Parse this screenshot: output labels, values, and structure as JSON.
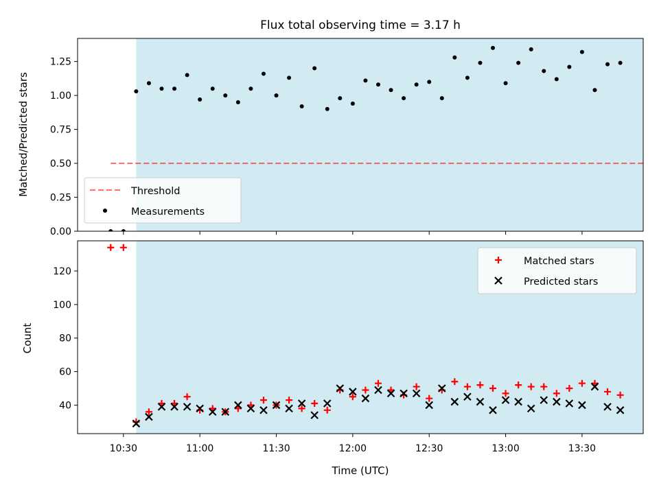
{
  "chart_data": [
    {
      "type": "scatter",
      "title": "Flux total observing time = 3.17 h",
      "ylabel": "Matched/Predicted stars",
      "xlabel": "",
      "ylim": [
        0,
        1.42
      ],
      "xlim": [
        "10:12",
        "13:54"
      ],
      "yticks": [
        "0.00",
        "0.25",
        "0.50",
        "0.75",
        "1.00",
        "1.25"
      ],
      "shaded_span": [
        "10:35",
        "14:10"
      ],
      "shade_color": "#add8e6",
      "threshold": {
        "name": "Threshold",
        "y": 0.5,
        "x_start": "10:25",
        "x_end": "14:10",
        "color": "#ff0000"
      },
      "legend_position": "lower-left",
      "series": [
        {
          "name": "Measurements",
          "marker": "dot",
          "color": "#000000",
          "x": [
            "10:25",
            "10:30",
            "10:35",
            "10:40",
            "10:45",
            "10:50",
            "10:55",
            "11:00",
            "11:05",
            "11:10",
            "11:15",
            "11:20",
            "11:25",
            "11:30",
            "11:35",
            "11:40",
            "11:45",
            "11:50",
            "11:55",
            "12:00",
            "12:05",
            "12:10",
            "12:15",
            "12:20",
            "12:25",
            "12:30",
            "12:35",
            "12:40",
            "12:45",
            "12:50",
            "12:55",
            "13:00",
            "13:05",
            "13:10",
            "13:15",
            "13:20",
            "13:25",
            "13:30",
            "13:35",
            "13:40",
            "13:45"
          ],
          "y": [
            0.0,
            0.0,
            1.03,
            1.09,
            1.05,
            1.05,
            1.15,
            0.97,
            1.05,
            1.0,
            0.95,
            1.05,
            1.16,
            1.0,
            1.13,
            0.92,
            1.2,
            0.9,
            0.98,
            0.94,
            1.11,
            1.08,
            1.04,
            0.98,
            1.08,
            1.1,
            0.98,
            1.28,
            1.13,
            1.24,
            1.35,
            1.09,
            1.24,
            1.34,
            1.18,
            1.12,
            1.21,
            1.32,
            1.04,
            1.23,
            1.24
          ]
        }
      ]
    },
    {
      "type": "scatter",
      "title": "",
      "xlabel": "Time (UTC)",
      "ylabel": "Count",
      "ylim": [
        23,
        138
      ],
      "xlim": [
        "10:12",
        "13:54"
      ],
      "xticks": [
        "10:30",
        "11:00",
        "11:30",
        "12:00",
        "12:30",
        "13:00",
        "13:30"
      ],
      "yticks": [
        "40",
        "60",
        "80",
        "100",
        "120"
      ],
      "shaded_span": [
        "10:35",
        "14:10"
      ],
      "shade_color": "#add8e6",
      "legend_position": "upper-right",
      "series": [
        {
          "name": "Matched stars",
          "marker": "plus",
          "color": "#ff0000",
          "x": [
            "10:25",
            "10:30",
            "10:35",
            "10:40",
            "10:45",
            "10:50",
            "10:55",
            "11:00",
            "11:05",
            "11:10",
            "11:15",
            "11:20",
            "11:25",
            "11:30",
            "11:35",
            "11:40",
            "11:45",
            "11:50",
            "11:55",
            "12:00",
            "12:05",
            "12:10",
            "12:15",
            "12:20",
            "12:25",
            "12:30",
            "12:35",
            "12:40",
            "12:45",
            "12:50",
            "12:55",
            "13:00",
            "13:05",
            "13:10",
            "13:15",
            "13:20",
            "13:25",
            "13:30",
            "13:35",
            "13:40",
            "13:45"
          ],
          "y": [
            134,
            134,
            30,
            36,
            41,
            41,
            45,
            37,
            38,
            36,
            38,
            40,
            43,
            40,
            43,
            38,
            41,
            37,
            49,
            45,
            49,
            53,
            49,
            46,
            51,
            44,
            49,
            54,
            51,
            52,
            50,
            47,
            52,
            51,
            51,
            47,
            50,
            53,
            53,
            48,
            46
          ]
        },
        {
          "name": "Predicted stars",
          "marker": "x",
          "color": "#000000",
          "x": [
            "10:35",
            "10:40",
            "10:45",
            "10:50",
            "10:55",
            "11:00",
            "11:05",
            "11:10",
            "11:15",
            "11:20",
            "11:25",
            "11:30",
            "11:35",
            "11:40",
            "11:45",
            "11:50",
            "11:55",
            "12:00",
            "12:05",
            "12:10",
            "12:15",
            "12:20",
            "12:25",
            "12:30",
            "12:35",
            "12:40",
            "12:45",
            "12:50",
            "12:55",
            "13:00",
            "13:05",
            "13:10",
            "13:15",
            "13:20",
            "13:25",
            "13:30",
            "13:35",
            "13:40",
            "13:45"
          ],
          "y": [
            29,
            33,
            39,
            39,
            39,
            38,
            36,
            36,
            40,
            38,
            37,
            40,
            38,
            41,
            34,
            41,
            50,
            48,
            44,
            49,
            47,
            47,
            47,
            40,
            50,
            42,
            45,
            42,
            37,
            43,
            42,
            38,
            43,
            42,
            41,
            40,
            51,
            39,
            37
          ]
        }
      ]
    }
  ]
}
